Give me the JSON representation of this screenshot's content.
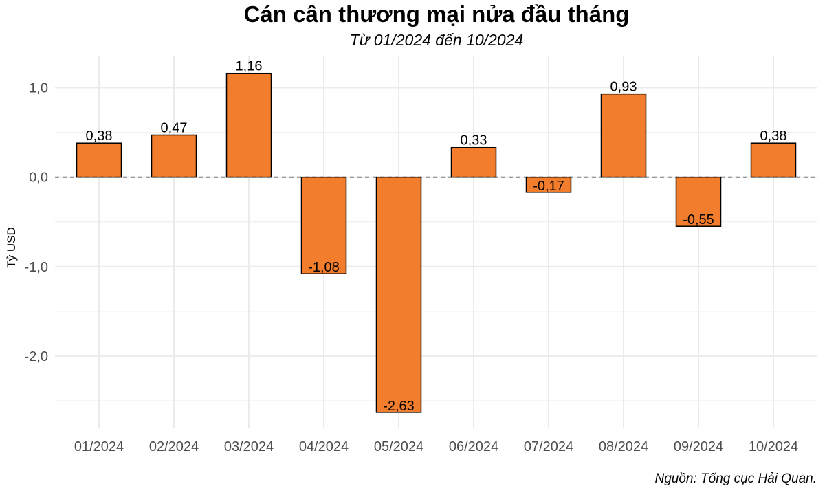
{
  "chart_data": {
    "type": "bar",
    "title": "Cán cân thương mại nửa đầu tháng",
    "subtitle": "Từ 01/2024 đến 10/2024",
    "caption": "Nguồn: Tổng cục Hải Quan.",
    "xlabel": "",
    "ylabel": "Tỷ USD",
    "categories": [
      "01/2024",
      "02/2024",
      "03/2024",
      "04/2024",
      "05/2024",
      "06/2024",
      "07/2024",
      "08/2024",
      "09/2024",
      "10/2024"
    ],
    "values": [
      0.38,
      0.47,
      1.16,
      -1.08,
      -2.63,
      0.33,
      -0.17,
      0.93,
      -0.55,
      0.38
    ],
    "data_labels": [
      "0,38",
      "0,47",
      "1,16",
      "-1,08",
      "-2,63",
      "0,33",
      "-0,17",
      "0,93",
      "-0,55",
      "0,38"
    ],
    "yticks": [
      1.0,
      0.0,
      -1.0,
      -2.0
    ],
    "ytick_labels": [
      "1,0",
      "0,0",
      "-1,0",
      "-2,0"
    ],
    "ylim": [
      -2.8,
      1.35
    ],
    "grid": true,
    "zero_line": "dashed",
    "bar_color": "#F27D2C",
    "bar_border_color": "#000000",
    "grid_color": "#EBEBEB",
    "legend": "none"
  }
}
